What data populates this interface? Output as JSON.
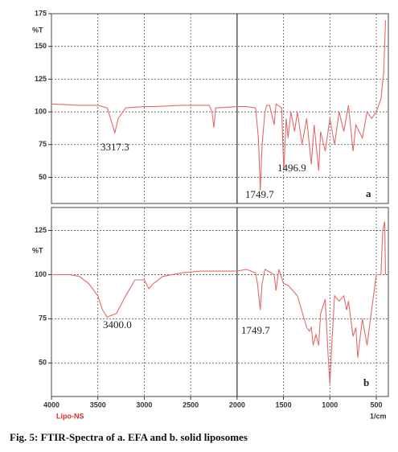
{
  "chart_data": [
    {
      "type": "line",
      "y_label": "%T",
      "panel_label": "a",
      "annotations": [
        "3317.3",
        "1749.7",
        "1496.9"
      ],
      "xlim": [
        4000,
        370
      ],
      "xticks": [
        4000,
        3500,
        3000,
        2500,
        2000,
        1500,
        1000,
        500
      ],
      "ylim": [
        30,
        175
      ],
      "yticks": [
        50,
        75,
        100,
        125,
        150,
        175
      ],
      "grid": true,
      "x": [
        4000,
        3700,
        3500,
        3400,
        3350,
        3317,
        3280,
        3200,
        3000,
        2900,
        2600,
        2300,
        2270,
        2250,
        2230,
        2000,
        1900,
        1800,
        1770,
        1749.7,
        1730,
        1700,
        1680,
        1650,
        1600,
        1580,
        1520,
        1496.9,
        1470,
        1450,
        1420,
        1380,
        1350,
        1300,
        1250,
        1200,
        1170,
        1120,
        1100,
        1050,
        1000,
        950,
        900,
        850,
        800,
        750,
        720,
        650,
        600,
        550,
        500,
        450,
        420,
        400
      ],
      "series": [
        {
          "color": "#e36a6a",
          "values": [
            106,
            105,
            105,
            103,
            92,
            84,
            95,
            103,
            104,
            104,
            105,
            105,
            100,
            88,
            103,
            104,
            104,
            103,
            80,
            40,
            75,
            100,
            105,
            105,
            90,
            106,
            103,
            55,
            95,
            80,
            100,
            85,
            100,
            75,
            95,
            60,
            90,
            55,
            85,
            70,
            95,
            75,
            100,
            85,
            105,
            70,
            90,
            80,
            100,
            95,
            100,
            110,
            130,
            170
          ]
        }
      ]
    },
    {
      "type": "line",
      "y_label": "%T",
      "panel_label": "b",
      "annotations": [
        "3400.0",
        "1749.7"
      ],
      "xlim": [
        4000,
        370
      ],
      "xticks": [
        4000,
        3500,
        3000,
        2500,
        2000,
        1500,
        1000,
        500
      ],
      "x_unit": "1/cm",
      "x_note": "Lipo-NS",
      "ylim": [
        31,
        138
      ],
      "yticks": [
        50,
        75,
        100,
        125
      ],
      "grid": true,
      "x": [
        4000,
        3800,
        3700,
        3600,
        3500,
        3450,
        3400,
        3300,
        3200,
        3100,
        3000,
        2950,
        2900,
        2800,
        2600,
        2400,
        2200,
        2000,
        1900,
        1800,
        1780,
        1749.7,
        1730,
        1700,
        1600,
        1580,
        1550,
        1500,
        1450,
        1400,
        1350,
        1250,
        1220,
        1200,
        1180,
        1150,
        1120,
        1100,
        1050,
        1020,
        1000,
        980,
        950,
        900,
        850,
        820,
        800,
        750,
        720,
        700,
        650,
        600,
        550,
        500,
        450,
        430,
        410,
        400
      ],
      "series": [
        {
          "color": "#e36a6a",
          "values": [
            100,
            100,
            99,
            95,
            88,
            80,
            76,
            78,
            88,
            97,
            97,
            92,
            95,
            99,
            101,
            102,
            102,
            102,
            103,
            101,
            95,
            80,
            95,
            103,
            100,
            91,
            103,
            95,
            94,
            91,
            88,
            70,
            68,
            70,
            60,
            66,
            60,
            78,
            86,
            55,
            38,
            60,
            88,
            85,
            88,
            80,
            85,
            65,
            70,
            53,
            75,
            60,
            80,
            100,
            100,
            125,
            130,
            100
          ]
        }
      ]
    }
  ],
  "caption": "Fig. 5: FTIR-Spectra of a. EFA and b. solid liposomes"
}
